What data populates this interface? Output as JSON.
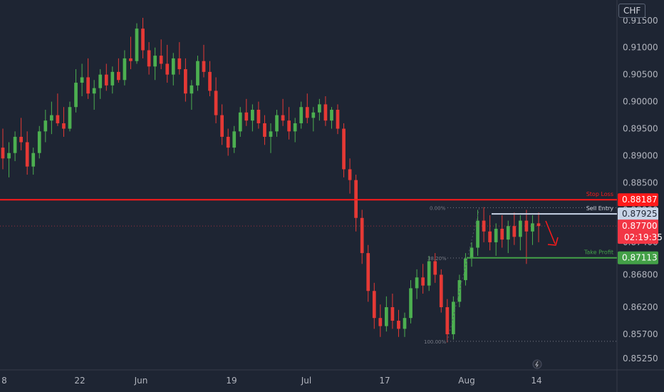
{
  "currency": "CHF",
  "colors": {
    "background": "#1e2533",
    "up": "#4caf50",
    "down": "#e53935",
    "stop_loss": "#ff1a1a",
    "sell_entry": "#c7d3e6",
    "take_profit": "#43a047",
    "last_price": "#f23645"
  },
  "levels": {
    "stop_loss": {
      "label": "Stop Loss",
      "value": "0.88187"
    },
    "sell_entry": {
      "label": "Sell Entry",
      "value": "0.87925"
    },
    "take_profit": {
      "label": "Take Profit",
      "value": "0.87113"
    },
    "last_price": {
      "value": "0.87700",
      "countdown": "02:19:35"
    }
  },
  "fib": {
    "top": "0.00%",
    "mid": "38.20%",
    "bottom": "100.00%"
  },
  "chart_data": {
    "type": "candlestick",
    "ylim": [
      0.8508,
      0.918
    ],
    "y_ticks": [
      "0.91500",
      "0.91000",
      "0.90500",
      "0.90000",
      "0.89500",
      "0.89000",
      "0.88500",
      "0.88000",
      "0.87400",
      "0.86800",
      "0.86200",
      "0.85700",
      "0.85250"
    ],
    "x_ticks": [
      "8",
      "22",
      "Jun",
      "19",
      "Jul",
      "17",
      "Aug",
      "14"
    ],
    "series": [
      {
        "values": [
          [
            0.8915,
            0.895,
            0.8875,
            0.8895
          ],
          [
            0.8895,
            0.8925,
            0.886,
            0.8905
          ],
          [
            0.8905,
            0.8945,
            0.889,
            0.8935
          ],
          [
            0.8935,
            0.897,
            0.891,
            0.8925
          ],
          [
            0.8925,
            0.8945,
            0.8865,
            0.888
          ],
          [
            0.888,
            0.8915,
            0.8865,
            0.8905
          ],
          [
            0.8905,
            0.8955,
            0.8895,
            0.8945
          ],
          [
            0.8945,
            0.8985,
            0.8925,
            0.8965
          ],
          [
            0.8965,
            0.9,
            0.894,
            0.8975
          ],
          [
            0.8975,
            0.9015,
            0.8955,
            0.896
          ],
          [
            0.896,
            0.899,
            0.8935,
            0.895
          ],
          [
            0.895,
            0.9,
            0.8945,
            0.899
          ],
          [
            0.899,
            0.906,
            0.898,
            0.9035
          ],
          [
            0.9035,
            0.907,
            0.901,
            0.9045
          ],
          [
            0.9045,
            0.908,
            0.9005,
            0.9015
          ],
          [
            0.9015,
            0.904,
            0.8985,
            0.9025
          ],
          [
            0.9025,
            0.906,
            0.9005,
            0.905
          ],
          [
            0.905,
            0.907,
            0.902,
            0.903
          ],
          [
            0.903,
            0.9065,
            0.9015,
            0.9055
          ],
          [
            0.9055,
            0.908,
            0.9035,
            0.904
          ],
          [
            0.904,
            0.9095,
            0.903,
            0.908
          ],
          [
            0.908,
            0.912,
            0.906,
            0.9075
          ],
          [
            0.9075,
            0.9145,
            0.907,
            0.9135
          ],
          [
            0.9135,
            0.9155,
            0.908,
            0.9095
          ],
          [
            0.9095,
            0.911,
            0.905,
            0.9065
          ],
          [
            0.9065,
            0.91,
            0.904,
            0.9085
          ],
          [
            0.9085,
            0.9115,
            0.906,
            0.907
          ],
          [
            0.907,
            0.9105,
            0.9035,
            0.905
          ],
          [
            0.905,
            0.909,
            0.903,
            0.908
          ],
          [
            0.908,
            0.911,
            0.905,
            0.906
          ],
          [
            0.906,
            0.908,
            0.9,
            0.9015
          ],
          [
            0.9015,
            0.904,
            0.8985,
            0.903
          ],
          [
            0.903,
            0.9085,
            0.902,
            0.9075
          ],
          [
            0.9075,
            0.9105,
            0.9045,
            0.9055
          ],
          [
            0.9055,
            0.9075,
            0.901,
            0.902
          ],
          [
            0.902,
            0.9045,
            0.896,
            0.8975
          ],
          [
            0.8975,
            0.8995,
            0.892,
            0.8935
          ],
          [
            0.8935,
            0.895,
            0.89,
            0.8915
          ],
          [
            0.8915,
            0.8955,
            0.8905,
            0.8945
          ],
          [
            0.8945,
            0.899,
            0.8935,
            0.898
          ],
          [
            0.898,
            0.9005,
            0.8955,
            0.8965
          ],
          [
            0.8965,
            0.8995,
            0.8945,
            0.8985
          ],
          [
            0.8985,
            0.9,
            0.895,
            0.896
          ],
          [
            0.896,
            0.8975,
            0.892,
            0.8935
          ],
          [
            0.8935,
            0.896,
            0.8905,
            0.8945
          ],
          [
            0.8945,
            0.8985,
            0.8935,
            0.8975
          ],
          [
            0.8975,
            0.9005,
            0.8955,
            0.8965
          ],
          [
            0.8965,
            0.899,
            0.893,
            0.8945
          ],
          [
            0.8945,
            0.897,
            0.8925,
            0.896
          ],
          [
            0.896,
            0.9,
            0.895,
            0.899
          ],
          [
            0.899,
            0.9015,
            0.896,
            0.897
          ],
          [
            0.897,
            0.899,
            0.8945,
            0.898
          ],
          [
            0.898,
            0.9005,
            0.8965,
            0.8995
          ],
          [
            0.8995,
            0.901,
            0.8955,
            0.8965
          ],
          [
            0.8965,
            0.899,
            0.895,
            0.8985
          ],
          [
            0.8985,
            0.8995,
            0.894,
            0.895
          ],
          [
            0.895,
            0.896,
            0.886,
            0.8875
          ],
          [
            0.8875,
            0.8895,
            0.883,
            0.8855
          ],
          [
            0.8855,
            0.8865,
            0.876,
            0.8785
          ],
          [
            0.8785,
            0.88,
            0.87,
            0.872
          ],
          [
            0.872,
            0.8735,
            0.863,
            0.865
          ],
          [
            0.865,
            0.8665,
            0.858,
            0.86
          ],
          [
            0.86,
            0.8625,
            0.8565,
            0.8585
          ],
          [
            0.8585,
            0.864,
            0.8575,
            0.862
          ],
          [
            0.862,
            0.8645,
            0.858,
            0.8595
          ],
          [
            0.8595,
            0.8615,
            0.8565,
            0.858
          ],
          [
            0.858,
            0.861,
            0.8565,
            0.86
          ],
          [
            0.86,
            0.867,
            0.859,
            0.8655
          ],
          [
            0.8655,
            0.869,
            0.8635,
            0.8675
          ],
          [
            0.8675,
            0.87,
            0.8645,
            0.866
          ],
          [
            0.866,
            0.8715,
            0.865,
            0.8705
          ],
          [
            0.8705,
            0.872,
            0.8665,
            0.868
          ],
          [
            0.868,
            0.869,
            0.861,
            0.862
          ],
          [
            0.862,
            0.8635,
            0.8555,
            0.857
          ],
          [
            0.857,
            0.864,
            0.856,
            0.863
          ],
          [
            0.863,
            0.868,
            0.862,
            0.867
          ],
          [
            0.867,
            0.872,
            0.866,
            0.871
          ],
          [
            0.871,
            0.874,
            0.8695,
            0.873
          ],
          [
            0.873,
            0.88,
            0.8715,
            0.878
          ],
          [
            0.878,
            0.8805,
            0.874,
            0.876
          ],
          [
            0.876,
            0.879,
            0.8725,
            0.874
          ],
          [
            0.874,
            0.8775,
            0.8715,
            0.8765
          ],
          [
            0.8765,
            0.879,
            0.873,
            0.8745
          ],
          [
            0.8745,
            0.878,
            0.872,
            0.877
          ],
          [
            0.877,
            0.8795,
            0.8735,
            0.875
          ],
          [
            0.875,
            0.879,
            0.8725,
            0.878
          ],
          [
            0.878,
            0.88,
            0.87,
            0.876
          ],
          [
            0.876,
            0.879,
            0.8735,
            0.8775
          ],
          [
            0.8775,
            0.8795,
            0.874,
            0.877
          ]
        ]
      }
    ]
  }
}
